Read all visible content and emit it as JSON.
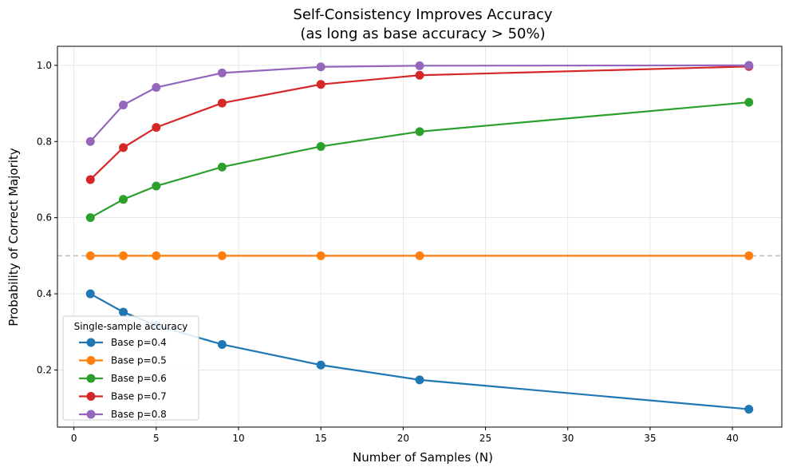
{
  "chart_data": {
    "type": "line",
    "title": "Self-Consistency Improves Accuracy",
    "subtitle": "(as long as base accuracy > 50%)",
    "xlabel": "Number of Samples (N)",
    "ylabel": "Probability of Correct Majority",
    "xlim": [
      -1,
      43
    ],
    "ylim": [
      0.05,
      1.05
    ],
    "xticks": [
      0,
      5,
      10,
      15,
      20,
      25,
      30,
      35,
      40
    ],
    "yticks": [
      0.2,
      0.4,
      0.6,
      0.8,
      1.0
    ],
    "ytick_labels": [
      "0.2",
      "0.4",
      "0.6",
      "0.8",
      "1.0"
    ],
    "grid": true,
    "reference_line": {
      "y": 0.5,
      "style": "dashed",
      "color": "#bbbbbb"
    },
    "legend": {
      "title": "Single-sample accuracy",
      "placement": "lower-left"
    },
    "x": [
      1,
      3,
      5,
      9,
      15,
      21,
      41
    ],
    "series": [
      {
        "name": "Base p=0.4",
        "color": "#1f77b4",
        "values": [
          0.4,
          0.352,
          0.317,
          0.267,
          0.213,
          0.174,
          0.097
        ]
      },
      {
        "name": "Base p=0.5",
        "color": "#ff7f0e",
        "values": [
          0.5,
          0.5,
          0.5,
          0.5,
          0.5,
          0.5,
          0.5
        ]
      },
      {
        "name": "Base p=0.6",
        "color": "#2ca02c",
        "values": [
          0.6,
          0.648,
          0.683,
          0.733,
          0.787,
          0.826,
          0.903
        ]
      },
      {
        "name": "Base p=0.7",
        "color": "#d62728",
        "values": [
          0.7,
          0.784,
          0.837,
          0.901,
          0.95,
          0.974,
          0.997
        ]
      },
      {
        "name": "Base p=0.8",
        "color": "#9467bd",
        "values": [
          0.8,
          0.896,
          0.942,
          0.98,
          0.996,
          0.999,
          1.0
        ]
      }
    ]
  }
}
